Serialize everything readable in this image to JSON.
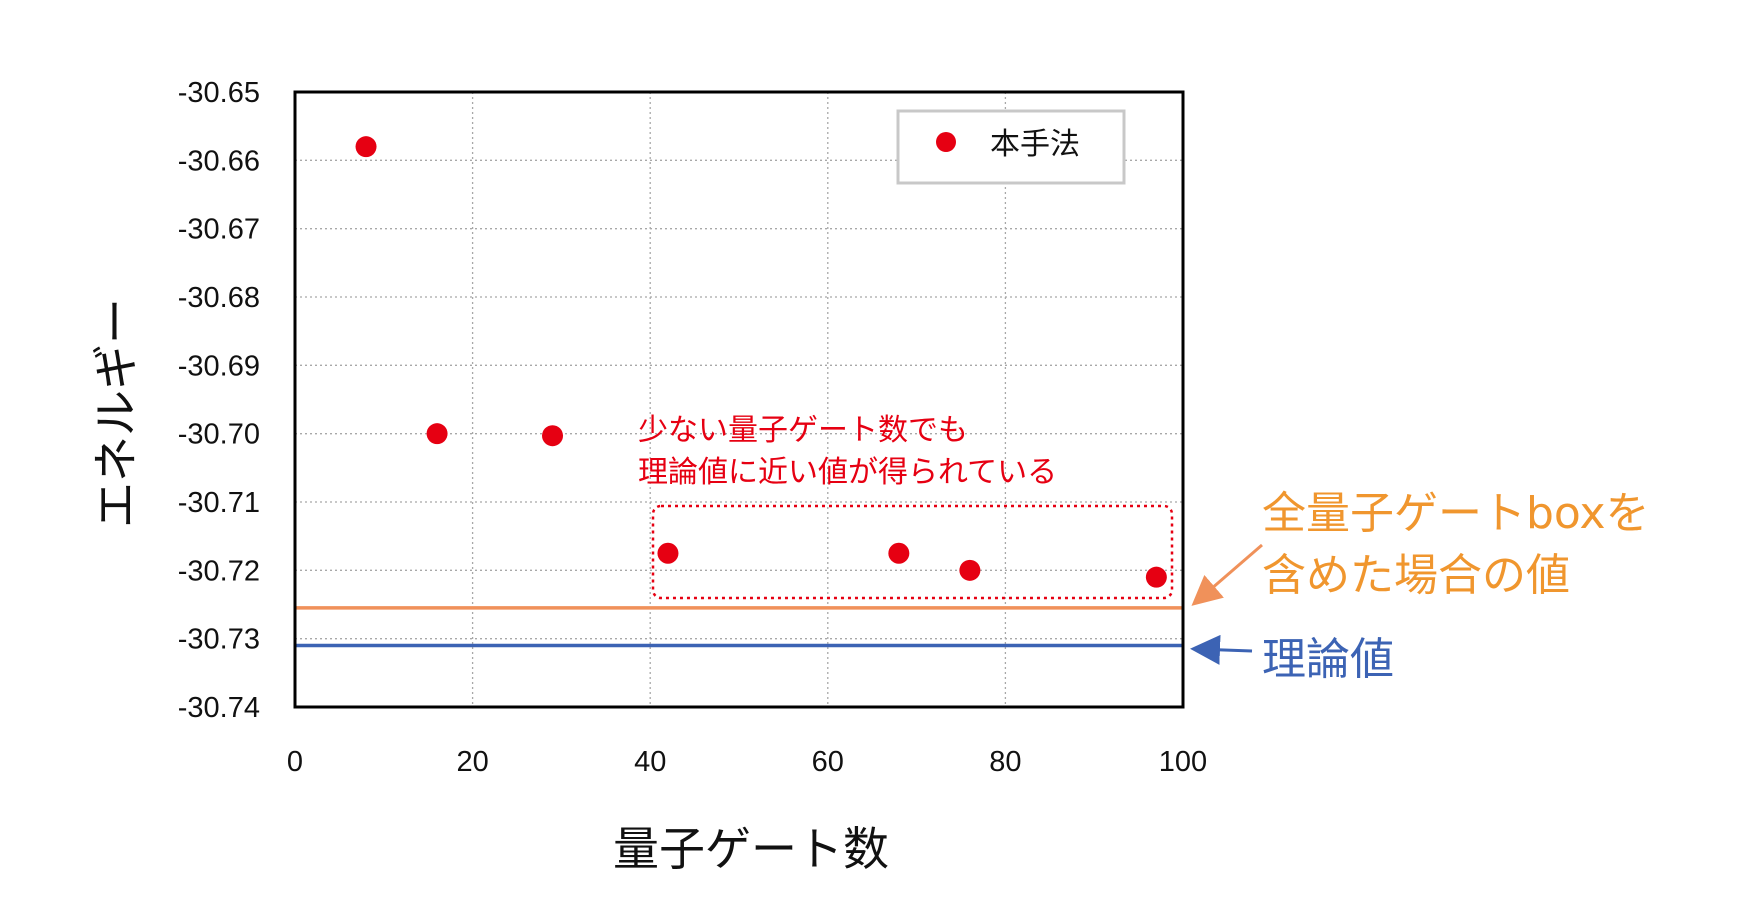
{
  "chart_data": {
    "type": "scatter",
    "xlabel": "量子ゲート数",
    "ylabel": "エネルギー",
    "xlim": [
      0,
      100
    ],
    "ylim": [
      -30.74,
      -30.65
    ],
    "x_ticks": [
      "0",
      "20",
      "40",
      "60",
      "80",
      "100"
    ],
    "y_ticks": [
      "-30.65",
      "-30.66",
      "-30.67",
      "-30.68",
      "-30.69",
      "-30.70",
      "-30.71",
      "-30.72",
      "-30.73",
      "-30.74"
    ],
    "grid": true,
    "legend_position": "top-right",
    "series": [
      {
        "name": "本手法",
        "color": "#e60012",
        "points": [
          {
            "x": 8,
            "y": -30.658
          },
          {
            "x": 16,
            "y": -30.7
          },
          {
            "x": 29,
            "y": -30.7003
          },
          {
            "x": 42,
            "y": -30.7175
          },
          {
            "x": 68,
            "y": -30.7175
          },
          {
            "x": 76,
            "y": -30.72
          },
          {
            "x": 97,
            "y": -30.721
          }
        ]
      }
    ],
    "reference_lines": [
      {
        "y": -30.7255,
        "color": "#f0915a",
        "label_lines": [
          "全量子ゲートboxを",
          "含めた場合の値"
        ]
      },
      {
        "y": -30.731,
        "color": "#3c63b4",
        "label_lines": [
          "理論値"
        ]
      }
    ],
    "annotation": {
      "color": "#e60012",
      "lines": [
        "少ない量子ゲート数でも",
        "理論値に近い値が得られている"
      ]
    }
  }
}
